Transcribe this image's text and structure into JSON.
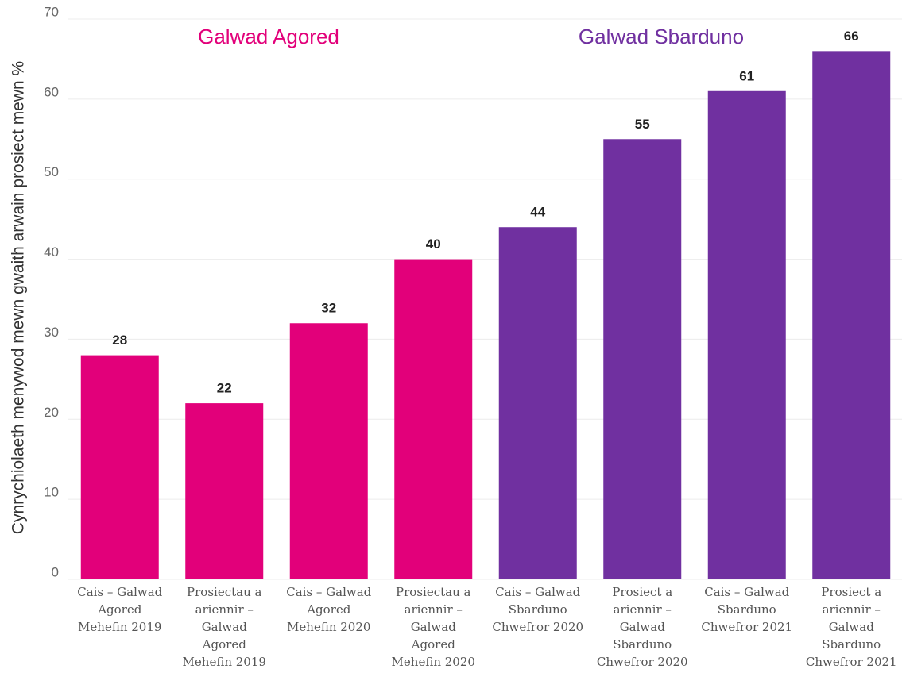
{
  "chart_data": {
    "type": "bar",
    "y_label": "Cynrychiolaeth menywod mewn gwaith arwain prosiect mewn %",
    "categories": [
      [
        "Cais – Galwad",
        "Agored",
        "Mehefin 2019"
      ],
      [
        "Prosiectau a",
        "ariennir –",
        "Galwad",
        "Agored",
        "Mehefin 2019"
      ],
      [
        "Cais – Galwad",
        "Agored",
        "Mehefin 2020"
      ],
      [
        "Prosiectau a",
        "ariennir –",
        "Galwad",
        "Agored",
        "Mehefin 2020"
      ],
      [
        "Cais – Galwad",
        "Sbarduno",
        "Chwefror 2020"
      ],
      [
        "Prosiect a",
        "ariennir –",
        "Galwad",
        "Sbarduno",
        "Chwefror 2020"
      ],
      [
        "Cais – Galwad",
        "Sbarduno",
        "Chwefror 2021"
      ],
      [
        "Prosiect a",
        "ariennir –",
        "Galwad",
        "Sbarduno",
        "Chwefror 2021"
      ]
    ],
    "values": [
      28,
      22,
      32,
      40,
      44,
      55,
      61,
      66
    ],
    "colors": [
      "#e2007a",
      "#e2007a",
      "#e2007a",
      "#e2007a",
      "#7030a0",
      "#7030a0",
      "#7030a0",
      "#7030a0"
    ],
    "annotations": [
      {
        "text": "Galwad Agored",
        "color": "#e2007a"
      },
      {
        "text": "Galwad Sbarduno",
        "color": "#7030a0"
      }
    ],
    "ylim": [
      0,
      70
    ],
    "yticks": [
      0,
      10,
      20,
      30,
      40,
      50,
      60,
      70
    ],
    "grid": true
  }
}
